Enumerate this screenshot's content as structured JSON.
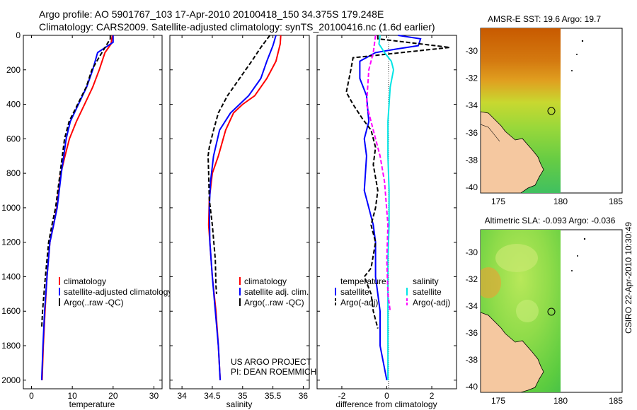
{
  "header": {
    "line1": "Argo profile: AO 5901767_103 17-Apr-2010 20100418_150 34.375S 179.248E",
    "line2": "Climatology: CARS2009. Satellite-adjusted climatology: synTS_20100416.nc (1.6d earlier)"
  },
  "colors": {
    "climatology": "#ff0000",
    "satellite": "#0000ff",
    "argo": "#000000",
    "sat_salinity": "#00e5e5",
    "argo_salinity": "#ff00ff"
  },
  "chart_data": [
    {
      "id": "temperature",
      "type": "line",
      "xlabel": "temperature",
      "xlim": [
        -2,
        32
      ],
      "ylim": [
        0,
        2050
      ],
      "xticks": [
        0,
        10,
        20,
        30
      ],
      "yticks": [
        0,
        200,
        400,
        600,
        800,
        1000,
        1200,
        1400,
        1600,
        1800,
        2000
      ],
      "legend": [
        "climatology",
        "satellite-adjusted climatology",
        "Argo(..raw -QC)"
      ],
      "series": [
        {
          "name": "climatology",
          "x": [
            19.8,
            19.5,
            18.0,
            16.6,
            15.0,
            13.0,
            11.0,
            9.3,
            8.2,
            7.2,
            6.2,
            5.4,
            4.5,
            3.8,
            3.3,
            2.9,
            2.6
          ],
          "y": [
            0,
            50,
            100,
            200,
            300,
            400,
            500,
            600,
            700,
            800,
            1000,
            1100,
            1200,
            1400,
            1600,
            1800,
            2000
          ]
        },
        {
          "name": "satellite",
          "x": [
            20.0,
            20.0,
            16.2,
            15.0,
            13.5,
            11.5,
            9.5,
            8.5,
            7.3,
            6.3,
            5.4,
            4.5,
            3.8,
            3.2,
            2.8,
            2.5
          ],
          "y": [
            0,
            40,
            100,
            200,
            300,
            400,
            500,
            600,
            800,
            1000,
            1100,
            1200,
            1400,
            1600,
            1800,
            2000
          ]
        },
        {
          "name": "argo",
          "x": [
            19.3,
            19.3,
            16.5,
            14.8,
            13.4,
            11.3,
            9.2,
            8.1,
            7.0,
            5.9,
            5.0,
            4.2,
            3.4,
            2.7,
            2.5
          ],
          "y": [
            0,
            20,
            130,
            200,
            300,
            400,
            500,
            600,
            800,
            1000,
            1100,
            1200,
            1400,
            1600,
            1700
          ]
        }
      ]
    },
    {
      "id": "salinity",
      "type": "line",
      "xlabel": "salinity",
      "xlim": [
        33.8,
        36.1
      ],
      "ylim": [
        0,
        2050
      ],
      "xticks": [
        34,
        34.5,
        35,
        35.5,
        36
      ],
      "yticks": [
        0,
        200,
        400,
        600,
        800,
        1000,
        1200,
        1400,
        1600,
        1800,
        2000
      ],
      "legend": [
        "climatology",
        "satellite adj. clim.",
        "Argo(..raw -QC)"
      ],
      "series": [
        {
          "name": "climatology",
          "x": [
            35.63,
            35.62,
            35.55,
            35.4,
            35.2,
            35.0,
            34.85,
            34.72,
            34.6,
            34.5,
            34.45,
            34.44,
            34.46,
            34.5,
            34.56,
            34.6,
            34.63
          ],
          "y": [
            0,
            50,
            150,
            250,
            350,
            400,
            450,
            550,
            700,
            800,
            950,
            1100,
            1200,
            1400,
            1600,
            1800,
            2000
          ]
        },
        {
          "name": "satellite",
          "x": [
            35.55,
            35.5,
            35.4,
            35.3,
            35.1,
            34.95,
            34.8,
            34.62,
            34.52,
            34.47,
            34.45,
            34.46,
            34.5,
            34.55,
            34.6,
            34.63
          ],
          "y": [
            0,
            60,
            150,
            250,
            350,
            400,
            450,
            550,
            700,
            850,
            1000,
            1200,
            1400,
            1600,
            1800,
            2000
          ]
        },
        {
          "name": "argo",
          "x": [
            35.45,
            35.3,
            35.15,
            34.95,
            34.75,
            34.6,
            34.52,
            34.45,
            34.43,
            34.44,
            34.45,
            34.5,
            34.55,
            34.56,
            34.57
          ],
          "y": [
            0,
            70,
            150,
            250,
            350,
            450,
            550,
            650,
            700,
            800,
            950,
            1100,
            1300,
            1450,
            1500
          ]
        }
      ]
    },
    {
      "id": "difference",
      "type": "line",
      "xlabel": "difference from climatology",
      "xlim": [
        -3.1,
        3.1
      ],
      "ylim": [
        0,
        2050
      ],
      "xticks": [
        -2,
        0,
        2
      ],
      "yticks": [
        0,
        200,
        400,
        600,
        800,
        1000,
        1200,
        1400,
        1600,
        1800,
        2000
      ],
      "legend_left_title": "temperature",
      "legend_right_title": "salinity",
      "legend_left": [
        "satellite",
        "Argo(-adj)"
      ],
      "legend_right": [
        "satellite",
        "Argo(-adj)"
      ],
      "series": [
        {
          "name": "temperature satellite",
          "x": [
            0.5,
            1.5,
            1.4,
            0.4,
            -0.5,
            -1.2,
            -1.2,
            -0.9,
            -0.8,
            -1.0,
            -0.9,
            -1.0,
            -0.8,
            -0.6,
            -0.5,
            -0.5,
            -0.3,
            -0.3,
            0.0
          ],
          "y": [
            0,
            20,
            60,
            80,
            100,
            150,
            250,
            350,
            500,
            600,
            700,
            900,
            1000,
            1100,
            1200,
            1400,
            1600,
            1800,
            2000
          ]
        },
        {
          "name": "temperature argo",
          "x": [
            -0.4,
            -0.4,
            2.8,
            -1.5,
            -1.6,
            -1.8,
            -1.5,
            -1.1,
            -0.7,
            -0.5,
            -0.6,
            -0.4,
            -0.5,
            -0.7,
            -0.5,
            -0.7,
            -1.0,
            -0.7,
            -0.6,
            -0.4
          ],
          "y": [
            0,
            20,
            70,
            130,
            200,
            330,
            400,
            480,
            550,
            650,
            750,
            900,
            1000,
            1100,
            1200,
            1350,
            1400,
            1500,
            1600,
            1700
          ]
        },
        {
          "name": "salinity satellite",
          "x": [
            -0.3,
            -0.35,
            -0.1,
            0.2,
            0.3,
            0.15,
            0.05,
            0.05,
            0.1,
            0.1,
            0.05,
            0.05,
            0.05,
            0.05
          ],
          "y": [
            0,
            50,
            100,
            150,
            200,
            300,
            500,
            700,
            900,
            1100,
            1300,
            1500,
            1700,
            2000
          ]
        },
        {
          "name": "salinity argo",
          "x": [
            -0.5,
            -0.6,
            -0.8,
            -0.9,
            -0.7,
            -0.5,
            -0.3,
            -0.1,
            0.05,
            0.0,
            0.05,
            0.15
          ],
          "y": [
            0,
            100,
            200,
            400,
            500,
            600,
            700,
            850,
            1100,
            1300,
            1500,
            1600
          ]
        }
      ]
    }
  ],
  "footer": {
    "project": "US ARGO PROJECT",
    "pi": "PI: DEAN ROEMMICH"
  },
  "maps": {
    "sst": {
      "title": "AMSR-E SST: 19.6 Argo: 19.7",
      "lon_ticks": [
        "175",
        "180",
        "185"
      ],
      "lat_ticks": [
        "-30",
        "-32",
        "-34",
        "-36",
        "-38",
        "-40"
      ],
      "value_sst": 19.6,
      "value_argo": 19.7
    },
    "sla": {
      "title": "Altimetric SLA: -0.093 Argo: -0.036",
      "lon_ticks": [
        "175",
        "180",
        "185"
      ],
      "lat_ticks": [
        "-30",
        "-32",
        "-34",
        "-36",
        "-38",
        "-40"
      ],
      "value_sla": -0.093,
      "value_argo": -0.036
    },
    "float_lat": -34.375,
    "float_lon": 179.248
  },
  "timestamp": "CSIRO 22-Apr-2010 10:30:49"
}
